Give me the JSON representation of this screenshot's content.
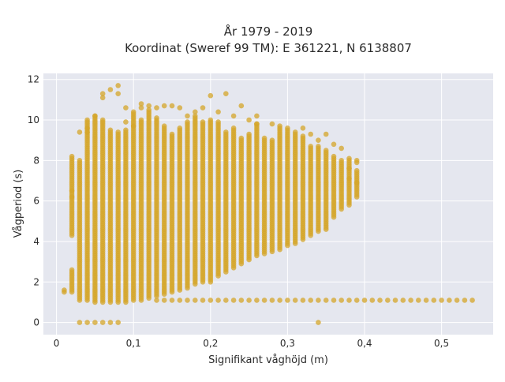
{
  "chart_data": {
    "type": "scatter",
    "title": "År 1979 - 2019",
    "subtitle": "Koordinat (Sweref 99 TM): E 361221, N 6138807",
    "xlabel": "Signifikant våghöjd (m)",
    "ylabel": "Vågperiod (s)",
    "xlim": [
      -0.017,
      0.567
    ],
    "ylim": [
      -0.6,
      12.3
    ],
    "x_ticks": [
      0,
      0.1,
      0.2,
      0.3,
      0.4,
      0.5
    ],
    "x_tick_labels": [
      "0",
      "0,1",
      "0,2",
      "0,3",
      "0,4",
      "0,5"
    ],
    "y_ticks": [
      0,
      2,
      4,
      6,
      8,
      10,
      12
    ],
    "y_tick_labels": [
      "0",
      "2",
      "4",
      "6",
      "8",
      "10",
      "12"
    ],
    "grid": true,
    "legend": "none",
    "colors": {
      "marker": "#d4a52a",
      "plot_bg": "#e5e7ef",
      "grid": "#ffffff"
    },
    "series": [
      {
        "columns": [
          [
            0.01,
            1.5,
            1.6
          ],
          [
            0.02,
            1.5,
            2.6
          ],
          [
            0.02,
            4.3,
            8.2
          ],
          [
            0.03,
            1.1,
            8.0
          ],
          [
            0.04,
            1.1,
            10.0
          ],
          [
            0.05,
            1.0,
            10.2
          ],
          [
            0.06,
            1.0,
            10.0
          ],
          [
            0.07,
            1.0,
            9.5
          ],
          [
            0.08,
            1.0,
            9.4
          ],
          [
            0.09,
            1.0,
            9.5
          ],
          [
            0.1,
            1.1,
            10.3
          ],
          [
            0.11,
            1.1,
            10.0
          ],
          [
            0.12,
            1.2,
            10.5
          ],
          [
            0.13,
            1.3,
            10.1
          ],
          [
            0.14,
            1.4,
            9.7
          ],
          [
            0.15,
            1.5,
            9.3
          ],
          [
            0.16,
            1.6,
            9.6
          ],
          [
            0.17,
            1.7,
            9.9
          ],
          [
            0.18,
            1.9,
            10.2
          ],
          [
            0.19,
            2.0,
            9.9
          ],
          [
            0.2,
            2.0,
            9.9
          ],
          [
            0.21,
            2.3,
            9.9
          ],
          [
            0.22,
            2.5,
            9.4
          ],
          [
            0.23,
            2.7,
            9.6
          ],
          [
            0.24,
            2.9,
            9.1
          ],
          [
            0.25,
            3.1,
            9.3
          ],
          [
            0.26,
            3.3,
            9.8
          ],
          [
            0.27,
            3.4,
            9.1
          ],
          [
            0.28,
            3.5,
            9.0
          ],
          [
            0.29,
            3.6,
            9.6
          ],
          [
            0.3,
            3.8,
            9.5
          ],
          [
            0.31,
            3.9,
            9.3
          ],
          [
            0.32,
            4.1,
            9.2
          ],
          [
            0.33,
            4.3,
            8.7
          ],
          [
            0.34,
            4.5,
            8.7
          ],
          [
            0.35,
            4.6,
            8.5
          ],
          [
            0.36,
            5.2,
            8.2
          ],
          [
            0.37,
            5.6,
            8.0
          ],
          [
            0.38,
            5.8,
            8.0
          ],
          [
            0.39,
            6.2,
            7.5
          ]
        ],
        "band_points": [
          [
            0.03,
            0
          ],
          [
            0.04,
            0
          ],
          [
            0.05,
            0
          ],
          [
            0.06,
            0
          ],
          [
            0.07,
            0
          ],
          [
            0.08,
            0
          ],
          [
            0.34,
            0
          ]
        ],
        "extra_points": [
          [
            0.02,
            6.5
          ],
          [
            0.02,
            6.2
          ],
          [
            0.03,
            9.4
          ],
          [
            0.04,
            9.6
          ],
          [
            0.04,
            9.4
          ],
          [
            0.05,
            10.2
          ],
          [
            0.06,
            11.3
          ],
          [
            0.06,
            11.1
          ],
          [
            0.07,
            11.5
          ],
          [
            0.08,
            11.7
          ],
          [
            0.08,
            11.3
          ],
          [
            0.09,
            10.6
          ],
          [
            0.09,
            9.9
          ],
          [
            0.1,
            9.7
          ],
          [
            0.1,
            10.4
          ],
          [
            0.11,
            10.8
          ],
          [
            0.11,
            10.6
          ],
          [
            0.12,
            10.7
          ],
          [
            0.13,
            10.6
          ],
          [
            0.14,
            10.7
          ],
          [
            0.15,
            10.7
          ],
          [
            0.16,
            10.6
          ],
          [
            0.17,
            10.2
          ],
          [
            0.18,
            10.4
          ],
          [
            0.19,
            10.6
          ],
          [
            0.2,
            11.2
          ],
          [
            0.2,
            10.0
          ],
          [
            0.21,
            10.4
          ],
          [
            0.22,
            11.3
          ],
          [
            0.23,
            10.2
          ],
          [
            0.24,
            10.7
          ],
          [
            0.25,
            10.0
          ],
          [
            0.26,
            10.2
          ],
          [
            0.26,
            9.8
          ],
          [
            0.28,
            9.8
          ],
          [
            0.29,
            9.7
          ],
          [
            0.3,
            9.6
          ],
          [
            0.31,
            9.4
          ],
          [
            0.32,
            9.6
          ],
          [
            0.33,
            9.3
          ],
          [
            0.34,
            9.0
          ],
          [
            0.35,
            9.3
          ],
          [
            0.36,
            8.8
          ],
          [
            0.37,
            8.6
          ],
          [
            0.38,
            8.1
          ],
          [
            0.39,
            8.0
          ],
          [
            0.39,
            7.9
          ],
          [
            0.39,
            6.9
          ],
          [
            0.38,
            7.6
          ],
          [
            0.38,
            7.1
          ]
        ],
        "tail_start_x": 0.13,
        "tail_end_x": 0.54,
        "tail_y": 1.1
      }
    ]
  }
}
